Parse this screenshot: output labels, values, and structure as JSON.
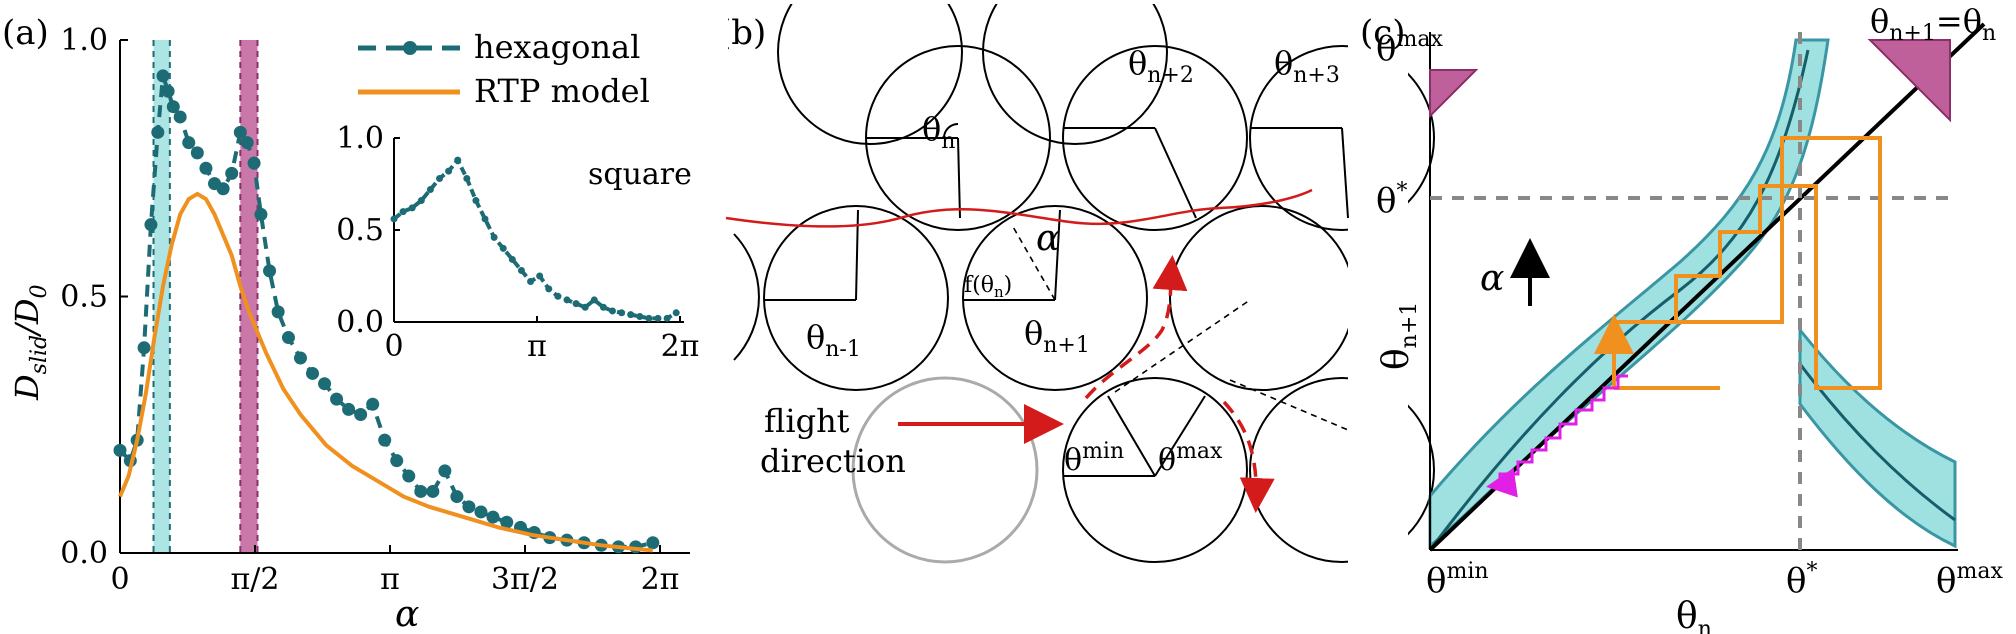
{
  "panels": {
    "a": {
      "label": "(a)",
      "ylabel_main": "D",
      "ylabel_sub": "slid",
      "ylabel_den": "/D",
      "ylabel_den_sub": "0",
      "xlabel": "α",
      "legend": [
        "hexagonal",
        "RTP model"
      ],
      "inset_label": "square",
      "inset_x_ticks": [
        "0",
        "π",
        "2π"
      ],
      "inset_y_ticks": [
        "0.0",
        "0.5",
        "1.0"
      ],
      "x_ticks": [
        "0",
        "π/2",
        "π",
        "3π/2",
        "2π"
      ],
      "y_ticks": [
        "0.0",
        "0.5",
        "1.0"
      ]
    },
    "b": {
      "label": "(b)",
      "theta": "θ",
      "sub_n": "n",
      "sub_n2": "n+2",
      "sub_n3": "n+3",
      "sub_nm1": "n-1",
      "sub_np1": "n+1",
      "f_label_pre": "f(θ",
      "f_label_sub": "n",
      "f_label_post": ")",
      "alpha": "α",
      "theta_min_sup": "min",
      "theta_max_sup": "max",
      "flight_line1": "flight",
      "flight_line2": "direction"
    },
    "c": {
      "label": "(c)",
      "y_top": "θ",
      "y_top_sup": "max",
      "y_star": "θ",
      "y_star_sup": "*",
      "ylabel": "θ",
      "ylabel_sub": "n+1",
      "diag_label_a": "θ",
      "diag_label_a_sub": "n+1",
      "diag_label_eq": "=",
      "diag_label_b": "θ",
      "diag_label_b_sub": "n",
      "alpha": "α",
      "x_ticks_main": [
        "θ",
        "θ",
        "θ"
      ],
      "x_ticks_sup": [
        "min",
        "*",
        "max"
      ],
      "xlabel": "θ",
      "xlabel_sub": "n"
    }
  },
  "chart_data": [
    {
      "type": "line",
      "title": "",
      "xlabel": "α",
      "ylabel": "D_slid/D_0",
      "xlim": [
        0,
        6.2832
      ],
      "ylim": [
        0,
        1.0
      ],
      "x_tick_labels": [
        "0",
        "π/2",
        "π",
        "3π/2",
        "2π"
      ],
      "y_tick_labels": [
        "0.0",
        "0.5",
        "1.0"
      ],
      "legend_position": "top-right",
      "shaded_bands": [
        {
          "from": 0.39,
          "to": 0.58,
          "color": "#9fe0e1"
        },
        {
          "from": 1.4,
          "to": 1.6,
          "color": "#c0609a"
        }
      ],
      "series": [
        {
          "name": "hexagonal",
          "color": "#1d6b75",
          "style": "dashed-markers",
          "x": [
            0.0,
            0.12,
            0.2,
            0.28,
            0.36,
            0.44,
            0.5,
            0.56,
            0.62,
            0.7,
            0.8,
            0.9,
            1.0,
            1.1,
            1.2,
            1.3,
            1.4,
            1.48,
            1.56,
            1.64,
            1.74,
            1.84,
            1.96,
            2.1,
            2.24,
            2.38,
            2.52,
            2.66,
            2.8,
            2.94,
            3.08,
            3.22,
            3.36,
            3.5,
            3.64,
            3.78,
            3.92,
            4.06,
            4.2,
            4.34,
            4.5,
            4.66,
            4.82,
            5.0,
            5.2,
            5.4,
            5.6,
            5.8,
            6.0,
            6.2
          ],
          "y": [
            0.2,
            0.18,
            0.22,
            0.4,
            0.64,
            0.82,
            0.93,
            0.9,
            0.87,
            0.85,
            0.8,
            0.78,
            0.75,
            0.72,
            0.71,
            0.74,
            0.82,
            0.8,
            0.76,
            0.66,
            0.55,
            0.47,
            0.42,
            0.38,
            0.35,
            0.33,
            0.3,
            0.28,
            0.27,
            0.29,
            0.22,
            0.18,
            0.15,
            0.12,
            0.12,
            0.16,
            0.11,
            0.09,
            0.08,
            0.07,
            0.06,
            0.05,
            0.04,
            0.03,
            0.025,
            0.02,
            0.015,
            0.012,
            0.012,
            0.02
          ]
        },
        {
          "name": "RTP model",
          "color": "#f0901f",
          "style": "solid",
          "x": [
            0.0,
            0.1,
            0.2,
            0.3,
            0.4,
            0.5,
            0.6,
            0.7,
            0.8,
            0.9,
            1.0,
            1.1,
            1.2,
            1.3,
            1.4,
            1.5,
            1.7,
            1.9,
            2.1,
            2.4,
            2.7,
            3.0,
            3.3,
            3.6,
            4.0,
            4.4,
            4.8,
            5.2,
            5.6,
            6.0,
            6.2
          ],
          "y": [
            0.11,
            0.15,
            0.22,
            0.31,
            0.42,
            0.52,
            0.6,
            0.66,
            0.69,
            0.7,
            0.69,
            0.66,
            0.62,
            0.58,
            0.52,
            0.47,
            0.39,
            0.32,
            0.27,
            0.21,
            0.17,
            0.14,
            0.11,
            0.09,
            0.07,
            0.05,
            0.035,
            0.025,
            0.015,
            0.008,
            0.005
          ]
        }
      ]
    },
    {
      "type": "line",
      "title": "square",
      "xlim": [
        0,
        6.2832
      ],
      "ylim": [
        0,
        1.0
      ],
      "x_tick_labels": [
        "0",
        "π",
        "2π"
      ],
      "y_tick_labels": [
        "0.0",
        "0.5",
        "1.0"
      ],
      "series": [
        {
          "name": "",
          "color": "#1d6b75",
          "x": [
            0.0,
            0.2,
            0.4,
            0.6,
            0.8,
            1.0,
            1.2,
            1.4,
            1.6,
            1.8,
            2.0,
            2.2,
            2.4,
            2.6,
            2.8,
            3.0,
            3.2,
            3.4,
            3.6,
            3.8,
            4.0,
            4.2,
            4.4,
            4.6,
            4.8,
            5.0,
            5.2,
            5.4,
            5.6,
            5.8,
            6.0,
            6.2
          ],
          "y": [
            0.56,
            0.6,
            0.62,
            0.66,
            0.72,
            0.78,
            0.82,
            0.88,
            0.78,
            0.66,
            0.56,
            0.46,
            0.4,
            0.34,
            0.28,
            0.22,
            0.25,
            0.18,
            0.14,
            0.12,
            0.1,
            0.08,
            0.12,
            0.08,
            0.06,
            0.05,
            0.04,
            0.03,
            0.02,
            0.02,
            0.02,
            0.05
          ]
        }
      ]
    }
  ]
}
